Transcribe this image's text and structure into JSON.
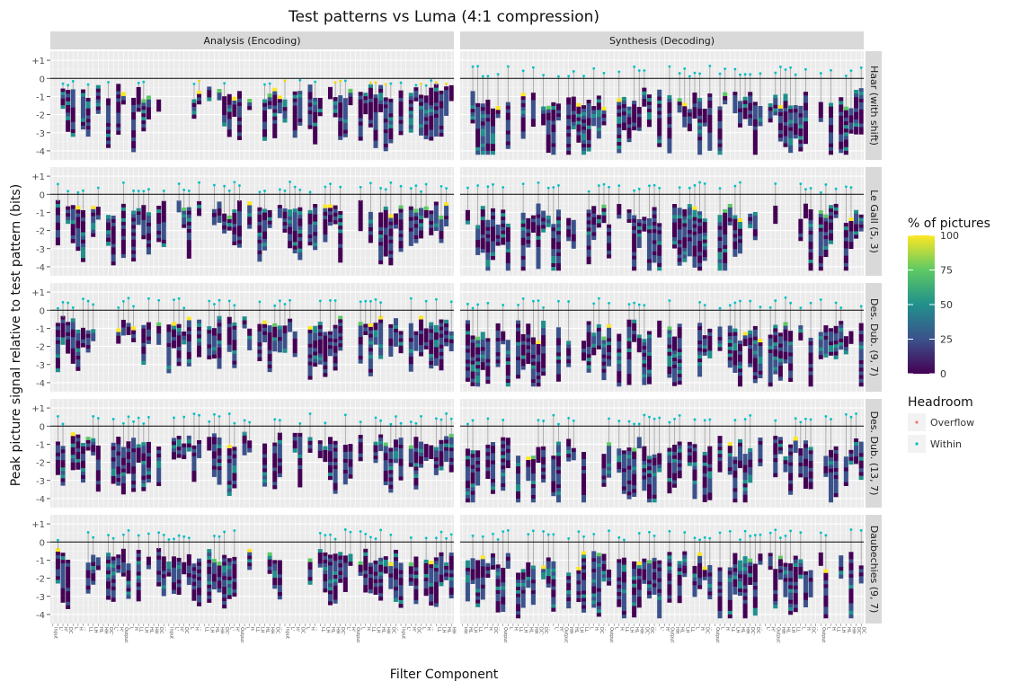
{
  "chart_data": {
    "type": "heatmap",
    "title": "Test patterns vs Luma (4:1 compression)",
    "xlabel": "Filter Component",
    "ylabel": "Peak picture signal relative to test pattern (bits)",
    "ylim": [
      -4.5,
      1.5
    ],
    "y_ticks": [
      1,
      0,
      -1,
      -2,
      -3,
      -4
    ],
    "y_tick_labels": [
      "+1",
      "0",
      "-1",
      "-2",
      "-3",
      "-4"
    ],
    "grid": true,
    "legend_position": "right",
    "columns": [
      "Analysis (Encoding)",
      "Synthesis (Decoding)"
    ],
    "rows": [
      "Haar (with shift)",
      "Le Gall (5, 3)",
      "Des. Dub. (9, 7)",
      "Des. Dub. (13, 7)",
      "Daubechies (9, 7)"
    ],
    "colorbar": {
      "title": "% of pictures",
      "ticks": [
        100,
        75,
        50,
        25,
        0
      ],
      "tick_labels": [
        "100",
        "75",
        "50",
        "25",
        "0"
      ],
      "colors": [
        "#440154",
        "#3b528b",
        "#21908c",
        "#5dc963",
        "#fde725"
      ]
    },
    "headroom_legend": {
      "title": "Headroom",
      "entries": [
        {
          "label": "Overflow",
          "color": "#f8766d"
        },
        {
          "label": "Within",
          "color": "#00bfc4"
        }
      ]
    },
    "x_tick_labels": {
      "analysis": [
        "Input",
        "L'",
        "H'",
        "DC",
        "L",
        "H",
        "...",
        "LL",
        "LH",
        "HL",
        "HH",
        "DC'",
        "L'",
        "H'",
        "Output",
        "L",
        "H",
        "LL",
        "LH",
        "HL",
        "HH",
        "DC",
        "..."
      ],
      "synthesis": [
        "HH",
        "HL",
        "LH",
        "LL",
        "L",
        "H",
        "DC",
        "...",
        "Output",
        "L",
        "H",
        "LL",
        "LH",
        "HL",
        "HH",
        "DC'",
        "DC",
        "...",
        "L'",
        "H'",
        "Output"
      ]
    },
    "panels": [
      {
        "row": "Haar (with shift)",
        "column": "Analysis (Encoding)",
        "ncols": 80,
        "groups": 8
      },
      {
        "row": "Haar (with shift)",
        "column": "Synthesis (Decoding)",
        "ncols": 80,
        "groups": 8
      },
      {
        "row": "Le Gall (5, 3)",
        "column": "Analysis (Encoding)",
        "ncols": 80,
        "groups": 8
      },
      {
        "row": "Le Gall (5, 3)",
        "column": "Synthesis (Decoding)",
        "ncols": 80,
        "groups": 8
      },
      {
        "row": "Des. Dub. (9, 7)",
        "column": "Analysis (Encoding)",
        "ncols": 80,
        "groups": 8
      },
      {
        "row": "Des. Dub. (9, 7)",
        "column": "Synthesis (Decoding)",
        "ncols": 80,
        "groups": 8
      },
      {
        "row": "Des. Dub. (13, 7)",
        "column": "Analysis (Encoding)",
        "ncols": 80,
        "groups": 8
      },
      {
        "row": "Des. Dub. (13, 7)",
        "column": "Synthesis (Decoding)",
        "ncols": 80,
        "groups": 8
      },
      {
        "row": "Daubechies (9, 7)",
        "column": "Analysis (Encoding)",
        "ncols": 80,
        "groups": 8
      },
      {
        "row": "Daubechies (9, 7)",
        "column": "Synthesis (Decoding)",
        "ncols": 80,
        "groups": 8
      }
    ]
  }
}
